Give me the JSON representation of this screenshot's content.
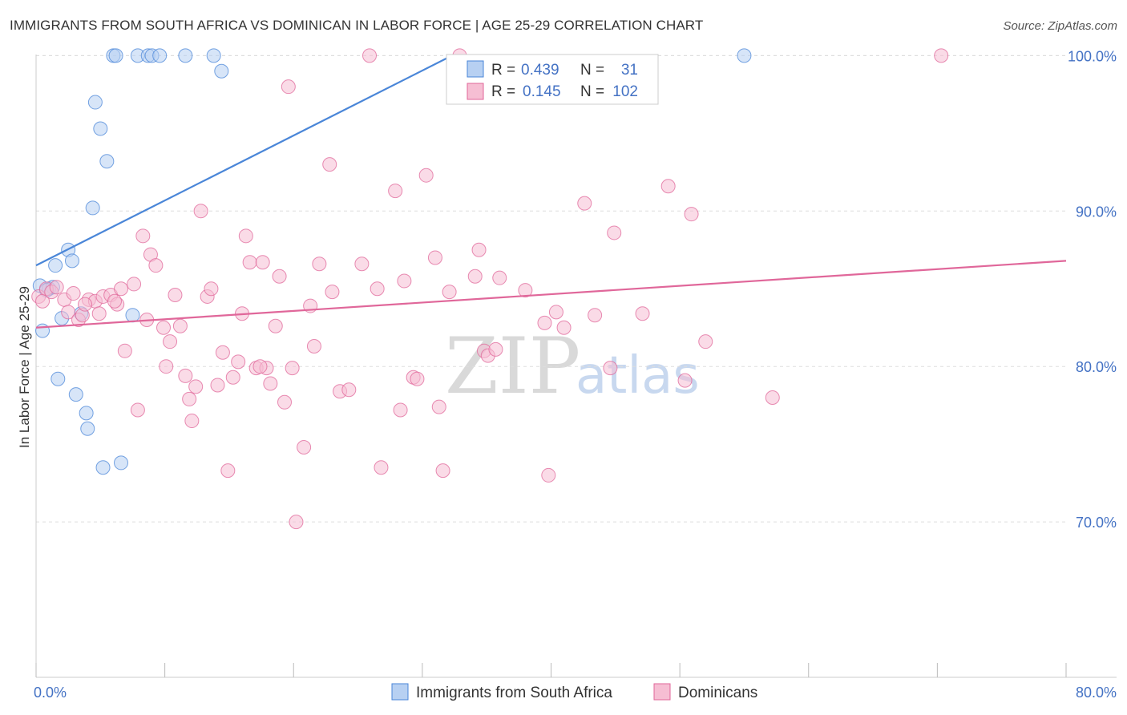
{
  "title": "IMMIGRANTS FROM SOUTH AFRICA VS DOMINICAN IN LABOR FORCE | AGE 25-29 CORRELATION CHART",
  "source": "Source: ZipAtlas.com",
  "watermark": {
    "zip": "ZIP",
    "atlas": "atlas"
  },
  "colors": {
    "blue": "#4a86d8",
    "blue_fill": "#b7d0f2",
    "pink": "#e0679a",
    "pink_fill": "#f6bed3",
    "tick": "#4472c4"
  },
  "legend_box": {
    "series1": {
      "r_label": "R =",
      "r_value": "0.439",
      "n_label": "N =",
      "n_value": "31"
    },
    "series2": {
      "r_label": "R =",
      "r_value": "0.145",
      "n_label": "N =",
      "n_value": "102"
    }
  },
  "chart_data": {
    "type": "scatter",
    "title": "IMMIGRANTS FROM SOUTH AFRICA VS DOMINICAN IN LABOR FORCE | AGE 25-29 CORRELATION CHART",
    "xlabel": "",
    "ylabel": "In Labor Force | Age 25-29",
    "xlim": [
      0,
      80
    ],
    "ylim": [
      60,
      101
    ],
    "x_tick_labels": [
      "0.0%",
      "80.0%"
    ],
    "y_ticks": [
      70,
      80,
      90,
      100
    ],
    "y_tick_labels": [
      "70.0%",
      "80.0%",
      "90.0%",
      "100.0%"
    ],
    "grid": true,
    "legend": "bottom-center",
    "series": [
      {
        "name": "Immigrants from South Africa",
        "color": "#4a86d8",
        "trend": {
          "x": [
            0,
            32.3
          ],
          "y": [
            86.5,
            100
          ]
        },
        "points": [
          [
            0.3,
            85.2
          ],
          [
            0.5,
            82.3
          ],
          [
            1.0,
            85.0
          ],
          [
            1.5,
            86.5
          ],
          [
            1.7,
            79.2
          ],
          [
            2.0,
            83.1
          ],
          [
            2.5,
            87.5
          ],
          [
            2.8,
            86.8
          ],
          [
            3.1,
            78.2
          ],
          [
            3.5,
            83.4
          ],
          [
            3.9,
            77.0
          ],
          [
            4.0,
            76.0
          ],
          [
            4.4,
            90.2
          ],
          [
            4.6,
            97.0
          ],
          [
            5.0,
            95.3
          ],
          [
            5.2,
            73.5
          ],
          [
            5.5,
            93.2
          ],
          [
            6.0,
            100.0
          ],
          [
            6.2,
            100.0
          ],
          [
            6.6,
            73.8
          ],
          [
            7.5,
            83.3
          ],
          [
            7.9,
            100.0
          ],
          [
            8.7,
            100.0
          ],
          [
            9.0,
            100.0
          ],
          [
            9.6,
            100.0
          ],
          [
            11.6,
            100.0
          ],
          [
            13.8,
            100.0
          ],
          [
            14.4,
            99.0
          ],
          [
            1.3,
            85.1
          ],
          [
            0.8,
            84.9
          ],
          [
            55.0,
            100.0
          ]
        ]
      },
      {
        "name": "Dominicans",
        "color": "#e0679a",
        "trend": {
          "x": [
            0,
            80
          ],
          "y": [
            82.5,
            86.8
          ]
        },
        "points": [
          [
            0.2,
            84.5
          ],
          [
            0.5,
            84.2
          ],
          [
            0.8,
            85.0
          ],
          [
            1.2,
            84.8
          ],
          [
            1.6,
            85.1
          ],
          [
            2.2,
            84.3
          ],
          [
            2.5,
            83.5
          ],
          [
            2.9,
            84.7
          ],
          [
            3.3,
            83.0
          ],
          [
            3.6,
            83.3
          ],
          [
            4.1,
            84.3
          ],
          [
            4.6,
            84.2
          ],
          [
            4.9,
            83.4
          ],
          [
            5.2,
            84.5
          ],
          [
            5.8,
            84.6
          ],
          [
            6.3,
            84.0
          ],
          [
            6.6,
            85.0
          ],
          [
            6.9,
            81.0
          ],
          [
            7.6,
            85.3
          ],
          [
            7.9,
            77.2
          ],
          [
            8.3,
            88.4
          ],
          [
            8.6,
            83.0
          ],
          [
            8.9,
            87.2
          ],
          [
            9.3,
            86.5
          ],
          [
            9.9,
            82.5
          ],
          [
            10.4,
            81.6
          ],
          [
            10.8,
            84.6
          ],
          [
            11.2,
            82.6
          ],
          [
            11.6,
            79.4
          ],
          [
            11.9,
            77.9
          ],
          [
            12.1,
            76.5
          ],
          [
            12.4,
            78.7
          ],
          [
            12.8,
            90.0
          ],
          [
            13.3,
            84.5
          ],
          [
            13.6,
            85.0
          ],
          [
            14.1,
            78.8
          ],
          [
            14.5,
            80.9
          ],
          [
            14.9,
            73.3
          ],
          [
            15.3,
            79.3
          ],
          [
            15.7,
            80.3
          ],
          [
            16.0,
            83.4
          ],
          [
            16.3,
            88.4
          ],
          [
            16.6,
            86.7
          ],
          [
            17.1,
            79.9
          ],
          [
            17.6,
            86.7
          ],
          [
            17.9,
            79.9
          ],
          [
            18.2,
            78.9
          ],
          [
            18.6,
            82.6
          ],
          [
            18.9,
            85.8
          ],
          [
            19.3,
            77.7
          ],
          [
            19.6,
            98.0
          ],
          [
            19.9,
            79.9
          ],
          [
            20.2,
            70.0
          ],
          [
            20.8,
            74.8
          ],
          [
            21.3,
            83.9
          ],
          [
            21.6,
            81.3
          ],
          [
            22.0,
            86.6
          ],
          [
            22.8,
            93.0
          ],
          [
            23.0,
            84.8
          ],
          [
            23.6,
            78.4
          ],
          [
            24.3,
            78.5
          ],
          [
            25.3,
            86.6
          ],
          [
            25.9,
            100.0
          ],
          [
            26.8,
            73.5
          ],
          [
            27.9,
            91.3
          ],
          [
            28.3,
            77.2
          ],
          [
            28.6,
            85.5
          ],
          [
            29.3,
            79.3
          ],
          [
            29.6,
            79.2
          ],
          [
            30.3,
            92.3
          ],
          [
            31.0,
            87.0
          ],
          [
            31.3,
            77.4
          ],
          [
            31.6,
            73.3
          ],
          [
            32.1,
            84.8
          ],
          [
            32.9,
            100.0
          ],
          [
            34.1,
            85.8
          ],
          [
            34.4,
            87.5
          ],
          [
            34.8,
            81.0
          ],
          [
            35.1,
            80.7
          ],
          [
            35.7,
            81.1
          ],
          [
            38.0,
            84.9
          ],
          [
            39.5,
            82.8
          ],
          [
            39.8,
            73.0
          ],
          [
            40.4,
            83.5
          ],
          [
            41.0,
            82.5
          ],
          [
            42.6,
            90.5
          ],
          [
            43.4,
            83.3
          ],
          [
            44.6,
            79.9
          ],
          [
            44.9,
            88.6
          ],
          [
            47.1,
            83.4
          ],
          [
            49.1,
            91.6
          ],
          [
            50.4,
            79.1
          ],
          [
            50.9,
            89.8
          ],
          [
            52.0,
            81.6
          ],
          [
            57.2,
            78.0
          ],
          [
            70.3,
            100.0
          ],
          [
            3.8,
            84.0
          ],
          [
            6.1,
            84.2
          ],
          [
            10.1,
            80.0
          ],
          [
            26.5,
            85.0
          ],
          [
            17.4,
            80.0
          ],
          [
            36.0,
            85.7
          ]
        ]
      }
    ]
  }
}
